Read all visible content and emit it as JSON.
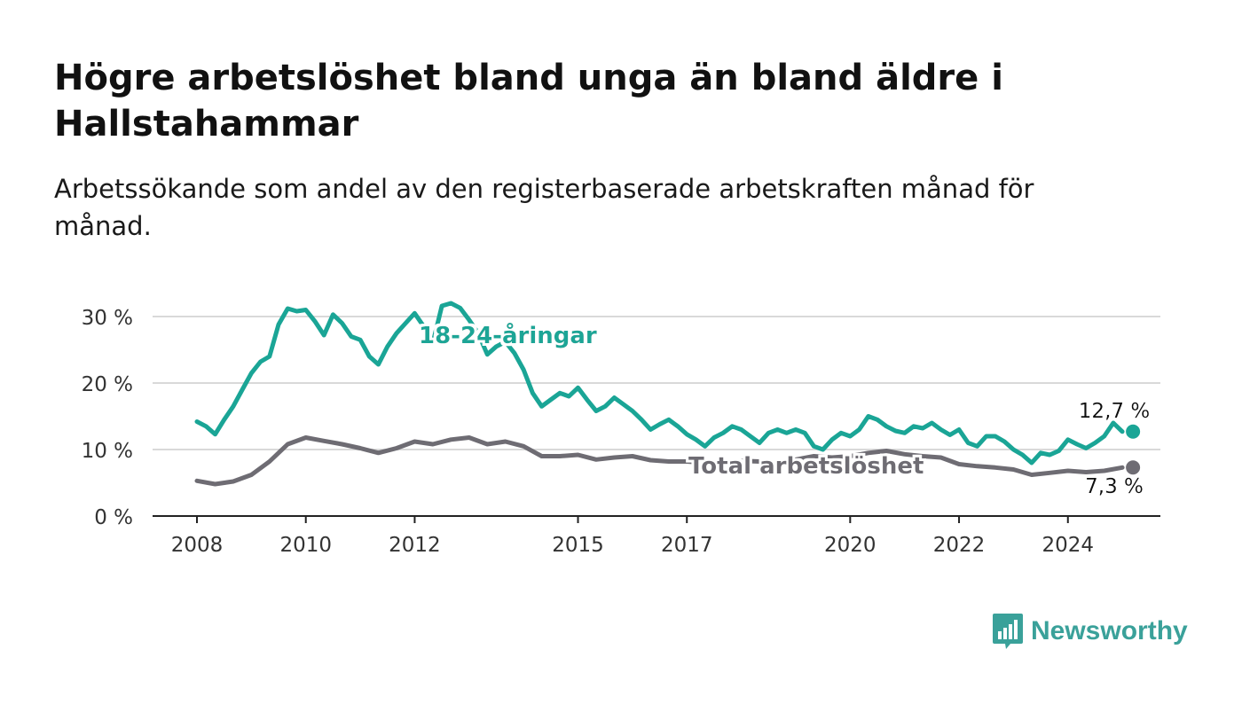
{
  "header": {
    "title": "Högre arbetslöshet bland unga än bland äldre i Hallstahammar",
    "subtitle": "Arbetssökande som andel av den registerbaserade arbetskraften månad för månad."
  },
  "brand": {
    "name": "Newsworthy",
    "color": "#3aa19a",
    "icon": "newsworthy-bar-chart-icon"
  },
  "chart_data": {
    "type": "line",
    "title": "Högre arbetslöshet bland unga än bland äldre i Hallstahammar",
    "subtitle": "Arbetssökande som andel av den registerbaserade arbetskraften månad för månad.",
    "xlabel": "",
    "ylabel": "",
    "xlim": [
      "2008-01",
      "2025-07"
    ],
    "ylim": [
      0,
      31
    ],
    "x_ticks": [
      "2008",
      "2010",
      "2012",
      "2015",
      "2017",
      "2020",
      "2022",
      "2024"
    ],
    "y_ticks": [
      {
        "value": 0,
        "label": "0 %"
      },
      {
        "value": 10,
        "label": "10 %"
      },
      {
        "value": 20,
        "label": "20 %"
      },
      {
        "value": 30,
        "label": "30 %"
      }
    ],
    "grid": true,
    "series": [
      {
        "name": "18-24-åringar",
        "color": "#1aa596",
        "end_label": "12,7 %",
        "points": [
          [
            "2008-01",
            14.2
          ],
          [
            "2008-03",
            13.5
          ],
          [
            "2008-05",
            12.3
          ],
          [
            "2008-07",
            14.5
          ],
          [
            "2008-09",
            16.5
          ],
          [
            "2008-11",
            19.0
          ],
          [
            "2009-01",
            21.5
          ],
          [
            "2009-03",
            23.2
          ],
          [
            "2009-05",
            24.0
          ],
          [
            "2009-07",
            28.8
          ],
          [
            "2009-09",
            31.2
          ],
          [
            "2009-11",
            30.8
          ],
          [
            "2010-01",
            31.0
          ],
          [
            "2010-03",
            29.3
          ],
          [
            "2010-05",
            27.2
          ],
          [
            "2010-07",
            30.3
          ],
          [
            "2010-09",
            29.0
          ],
          [
            "2010-11",
            27.0
          ],
          [
            "2011-01",
            26.5
          ],
          [
            "2011-03",
            24.0
          ],
          [
            "2011-05",
            22.8
          ],
          [
            "2011-07",
            25.5
          ],
          [
            "2011-09",
            27.5
          ],
          [
            "2011-11",
            29.0
          ],
          [
            "2012-01",
            30.5
          ],
          [
            "2012-03",
            28.5
          ],
          [
            "2012-05",
            26.0
          ],
          [
            "2012-07",
            31.6
          ],
          [
            "2012-09",
            32.0
          ],
          [
            "2012-11",
            31.3
          ],
          [
            "2013-01",
            29.5
          ],
          [
            "2013-03",
            27.5
          ],
          [
            "2013-05",
            24.3
          ],
          [
            "2013-07",
            25.5
          ],
          [
            "2013-09",
            26.2
          ],
          [
            "2013-11",
            24.5
          ],
          [
            "2014-01",
            22.0
          ],
          [
            "2014-03",
            18.5
          ],
          [
            "2014-05",
            16.5
          ],
          [
            "2014-07",
            17.5
          ],
          [
            "2014-09",
            18.5
          ],
          [
            "2014-11",
            18.0
          ],
          [
            "2015-01",
            19.3
          ],
          [
            "2015-03",
            17.5
          ],
          [
            "2015-05",
            15.8
          ],
          [
            "2015-07",
            16.5
          ],
          [
            "2015-09",
            17.8
          ],
          [
            "2015-11",
            16.8
          ],
          [
            "2016-01",
            15.8
          ],
          [
            "2016-03",
            14.5
          ],
          [
            "2016-05",
            13.0
          ],
          [
            "2016-07",
            13.8
          ],
          [
            "2016-09",
            14.5
          ],
          [
            "2016-11",
            13.5
          ],
          [
            "2017-01",
            12.3
          ],
          [
            "2017-03",
            11.5
          ],
          [
            "2017-05",
            10.5
          ],
          [
            "2017-07",
            11.8
          ],
          [
            "2017-09",
            12.5
          ],
          [
            "2017-11",
            13.5
          ],
          [
            "2018-01",
            13.0
          ],
          [
            "2018-03",
            12.0
          ],
          [
            "2018-05",
            11.0
          ],
          [
            "2018-07",
            12.5
          ],
          [
            "2018-09",
            13.0
          ],
          [
            "2018-11",
            12.5
          ],
          [
            "2019-01",
            13.0
          ],
          [
            "2019-03",
            12.5
          ],
          [
            "2019-05",
            10.5
          ],
          [
            "2019-07",
            10.0
          ],
          [
            "2019-09",
            11.5
          ],
          [
            "2019-11",
            12.5
          ],
          [
            "2020-01",
            12.0
          ],
          [
            "2020-03",
            13.0
          ],
          [
            "2020-05",
            15.0
          ],
          [
            "2020-07",
            14.5
          ],
          [
            "2020-09",
            13.5
          ],
          [
            "2020-11",
            12.8
          ],
          [
            "2021-01",
            12.5
          ],
          [
            "2021-03",
            13.5
          ],
          [
            "2021-05",
            13.2
          ],
          [
            "2021-07",
            14.0
          ],
          [
            "2021-09",
            13.0
          ],
          [
            "2021-11",
            12.2
          ],
          [
            "2022-01",
            13.0
          ],
          [
            "2022-03",
            11.0
          ],
          [
            "2022-05",
            10.5
          ],
          [
            "2022-07",
            12.0
          ],
          [
            "2022-09",
            12.0
          ],
          [
            "2022-11",
            11.2
          ],
          [
            "2023-01",
            10.0
          ],
          [
            "2023-03",
            9.2
          ],
          [
            "2023-05",
            8.0
          ],
          [
            "2023-07",
            9.5
          ],
          [
            "2023-09",
            9.2
          ],
          [
            "2023-11",
            9.8
          ],
          [
            "2024-01",
            11.5
          ],
          [
            "2024-03",
            10.8
          ],
          [
            "2024-05",
            10.2
          ],
          [
            "2024-07",
            11.0
          ],
          [
            "2024-09",
            12.0
          ],
          [
            "2024-11",
            14.0
          ],
          [
            "2025-01",
            12.7
          ]
        ]
      },
      {
        "name": "Total arbetslöshet",
        "color": "#6e6c73",
        "end_label": "7,3 %",
        "points": [
          [
            "2008-01",
            5.3
          ],
          [
            "2008-05",
            4.8
          ],
          [
            "2008-09",
            5.2
          ],
          [
            "2009-01",
            6.2
          ],
          [
            "2009-05",
            8.2
          ],
          [
            "2009-09",
            10.8
          ],
          [
            "2010-01",
            11.8
          ],
          [
            "2010-05",
            11.3
          ],
          [
            "2010-09",
            10.8
          ],
          [
            "2011-01",
            10.2
          ],
          [
            "2011-05",
            9.5
          ],
          [
            "2011-09",
            10.2
          ],
          [
            "2012-01",
            11.2
          ],
          [
            "2012-05",
            10.8
          ],
          [
            "2012-09",
            11.5
          ],
          [
            "2013-01",
            11.8
          ],
          [
            "2013-05",
            10.8
          ],
          [
            "2013-09",
            11.2
          ],
          [
            "2014-01",
            10.5
          ],
          [
            "2014-05",
            9.0
          ],
          [
            "2014-09",
            9.0
          ],
          [
            "2015-01",
            9.2
          ],
          [
            "2015-05",
            8.5
          ],
          [
            "2015-09",
            8.8
          ],
          [
            "2016-01",
            9.0
          ],
          [
            "2016-05",
            8.4
          ],
          [
            "2016-09",
            8.2
          ],
          [
            "2017-01",
            8.2
          ],
          [
            "2017-05",
            8.0
          ],
          [
            "2017-09",
            8.2
          ],
          [
            "2018-01",
            8.3
          ],
          [
            "2018-05",
            8.2
          ],
          [
            "2018-09",
            8.0
          ],
          [
            "2019-01",
            8.5
          ],
          [
            "2019-05",
            9.0
          ],
          [
            "2019-09",
            8.8
          ],
          [
            "2020-01",
            9.0
          ],
          [
            "2020-05",
            9.5
          ],
          [
            "2020-09",
            9.8
          ],
          [
            "2021-01",
            9.3
          ],
          [
            "2021-05",
            9.0
          ],
          [
            "2021-09",
            8.8
          ],
          [
            "2022-01",
            7.8
          ],
          [
            "2022-05",
            7.5
          ],
          [
            "2022-09",
            7.3
          ],
          [
            "2023-01",
            7.0
          ],
          [
            "2023-05",
            6.2
          ],
          [
            "2023-09",
            6.5
          ],
          [
            "2024-01",
            6.8
          ],
          [
            "2024-05",
            6.6
          ],
          [
            "2024-09",
            6.8
          ],
          [
            "2025-01",
            7.3
          ]
        ]
      }
    ]
  }
}
